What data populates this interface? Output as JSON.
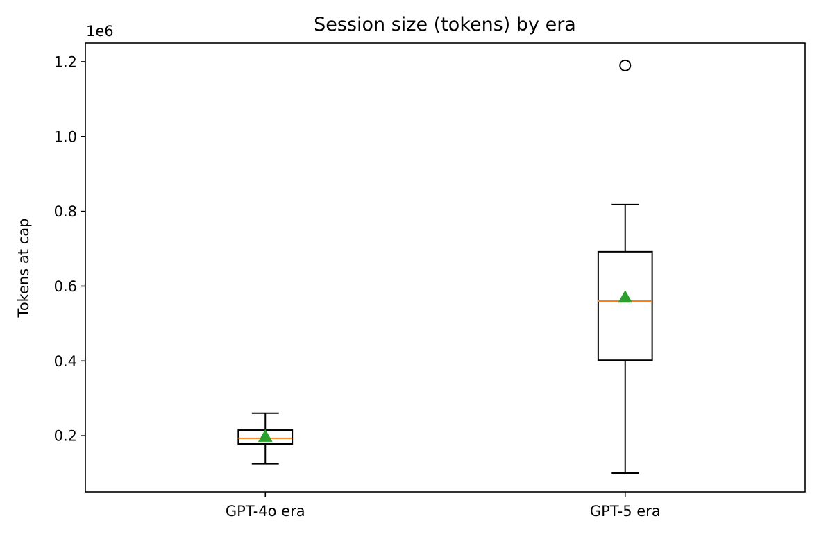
{
  "chart_data": {
    "type": "box",
    "title": "Session size (tokens) by era",
    "ylabel": "Tokens at cap",
    "xlabel": "",
    "y_offset_label": "1e6",
    "ylim": [
      50000,
      1250000
    ],
    "yticks": [
      200000,
      400000,
      600000,
      800000,
      1000000,
      1200000
    ],
    "ytick_labels": [
      "0.2",
      "0.4",
      "0.6",
      "0.8",
      "1.0",
      "1.2"
    ],
    "grid": false,
    "legend": "none",
    "categories": [
      "GPT-4o era",
      "GPT-5 era"
    ],
    "boxes": [
      {
        "label": "GPT-4o era",
        "whisker_low": 125000,
        "q1": 178000,
        "median": 193000,
        "q3": 215000,
        "whisker_high": 260000,
        "mean": 198000,
        "outliers": []
      },
      {
        "label": "GPT-5 era",
        "whisker_low": 100000,
        "q1": 402000,
        "median": 560000,
        "q3": 692000,
        "whisker_high": 818000,
        "mean": 570000,
        "outliers": [
          1190000
        ]
      }
    ],
    "colors": {
      "box": "#000000",
      "median": "#ff7f0e",
      "mean": "#2ca02c",
      "outlier": "#000000"
    }
  }
}
